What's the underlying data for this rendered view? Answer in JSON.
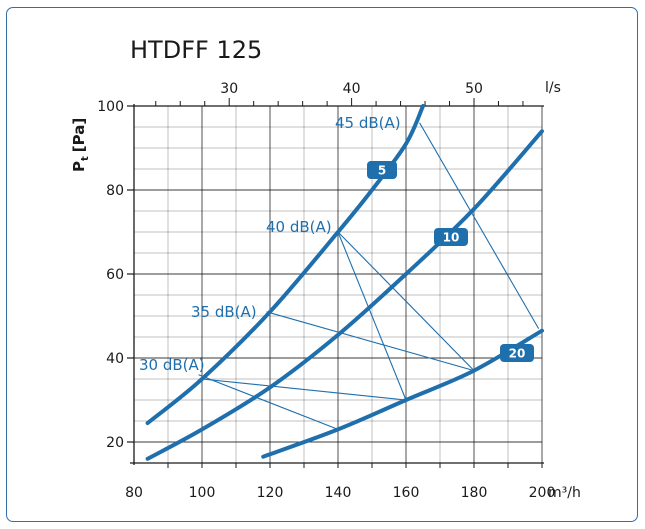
{
  "chart_data": {
    "type": "line",
    "title": "HTDFF 125",
    "ylabel_main": "P",
    "ylabel_sub": "t",
    "ylabel_unit": "[Pa]",
    "xunit": "m³/h",
    "x2unit": "l/s",
    "xlim": [
      80,
      200
    ],
    "ylim": [
      15,
      100
    ],
    "x_ticks": [
      80,
      100,
      120,
      140,
      160,
      180,
      200
    ],
    "y_ticks": [
      20,
      40,
      60,
      80,
      100
    ],
    "x2_ticks": [
      30,
      40,
      50
    ],
    "colors": {
      "curve": "#1f6fad",
      "grid": "#1a1a1a",
      "accent": "#1f6fad",
      "frame": "#2f6fa6"
    },
    "series": [
      {
        "name": "5",
        "x": [
          84,
          100,
          120,
          140,
          150,
          160,
          165
        ],
        "y": [
          24.5,
          35,
          51,
          70,
          80,
          91,
          100
        ]
      },
      {
        "name": "10",
        "x": [
          84,
          100,
          120,
          140,
          160,
          180,
          200
        ],
        "y": [
          16,
          23,
          33,
          45.5,
          60,
          75.5,
          94
        ]
      },
      {
        "name": "20",
        "x": [
          118,
          140,
          160,
          180,
          200
        ],
        "y": [
          16.5,
          23,
          30,
          37,
          46.5
        ]
      }
    ],
    "noise_lines": [
      {
        "label": "30 dB(A)",
        "points": [
          [
            99,
            36
          ],
          [
            140,
            23
          ]
        ]
      },
      {
        "label": "35 dB(A)",
        "points": [
          [
            119,
            51
          ],
          [
            180,
            37
          ]
        ]
      },
      {
        "label": "40 dB(A)",
        "points": [
          [
            140,
            70
          ],
          [
            160,
            30
          ]
        ]
      },
      {
        "label": "45 dB(A)",
        "points": [
          [
            164,
            96
          ],
          [
            199,
            47
          ]
        ]
      },
      {
        "label": "",
        "points": [
          [
            100,
            35
          ],
          [
            160,
            30
          ]
        ]
      },
      {
        "label": "",
        "points": [
          [
            140,
            70
          ],
          [
            180,
            37
          ]
        ]
      }
    ]
  }
}
